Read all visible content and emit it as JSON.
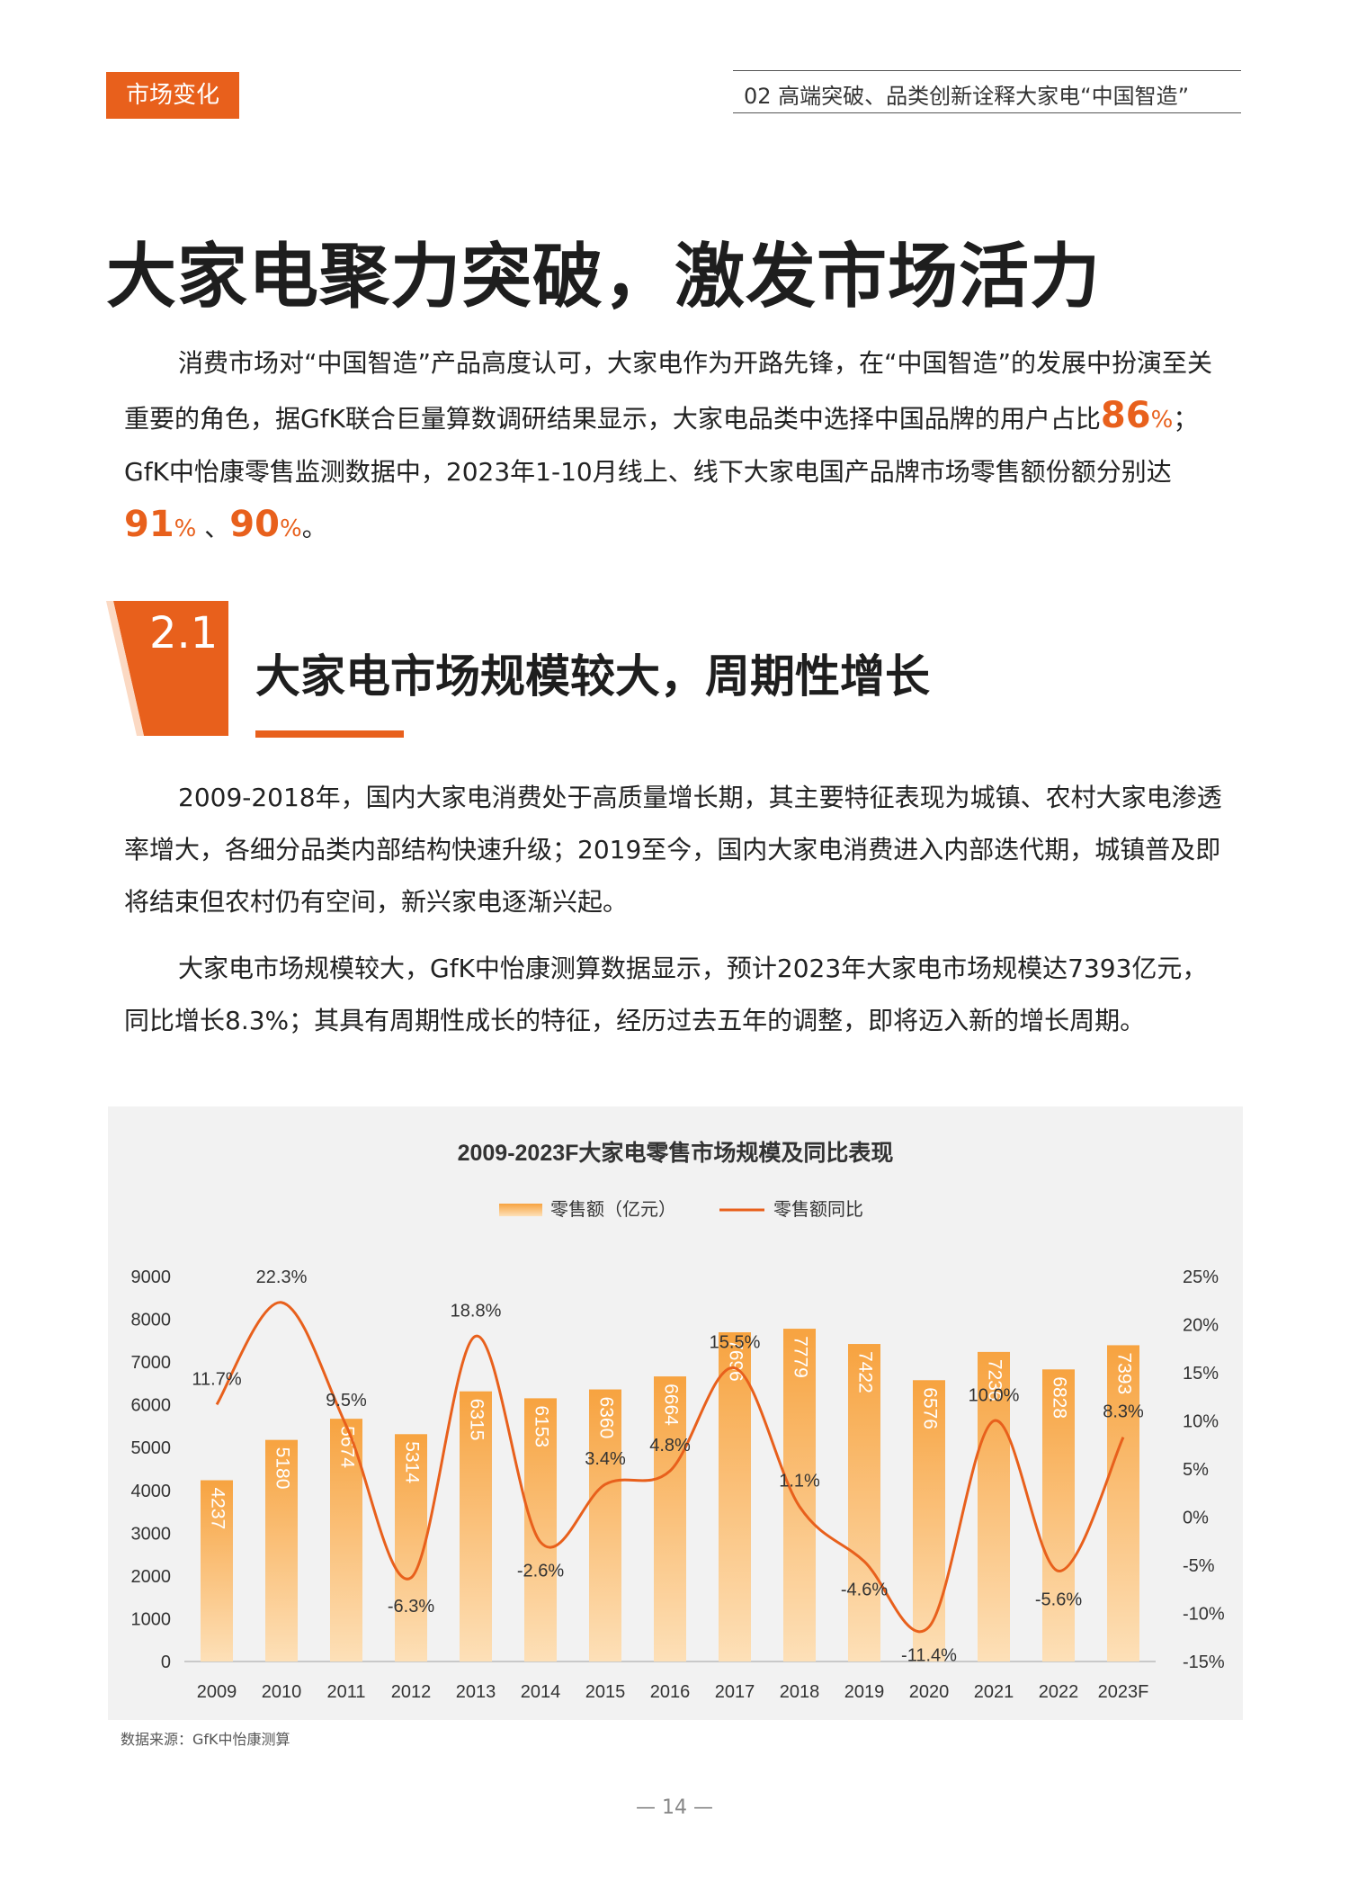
{
  "header": {
    "tag": "市场变化",
    "chapter": "02 高端突破、品类创新诠释大家电“中国智造”"
  },
  "title": "大家电聚力突破，激发市场活力",
  "intro": {
    "before1": "消费市场对“中国智造”产品高度认可，大家电作为开路先锋，在“中国智造”的发展中扮演至关重要的角色，据GfK联合巨量算数调研结果显示，大家电品类中选择中国品牌的用户占比",
    "v1": "86",
    "pct": "%",
    "between1": "；GfK中怡康零售监测数据中，2023年1-10月线上、线下大家电国产品牌市场零售额份额分别达",
    "v2": "91",
    "between2": " 、",
    "v3": "90",
    "end": "。"
  },
  "section": {
    "number": "2.1",
    "title": "大家电市场规模较大，周期性增长"
  },
  "para2": "2009-2018年，国内大家电消费处于高质量增长期，其主要特征表现为城镇、农村大家电渗透率增大，各细分品类内部结构快速升级；2019至今，国内大家电消费进入内部迭代期，城镇普及即将结束但农村仍有空间，新兴家电逐渐兴起。",
  "para3": "大家电市场规模较大，GfK中怡康测算数据显示，预计2023年大家电市场规模达7393亿元，同比增长8.3%；其具有周期性成长的特征，经历过去五年的调整，即将迈入新的增长周期。",
  "chart_data": {
    "type": "bar",
    "title": "2009-2023F大家电零售市场规模及同比表现",
    "categories": [
      "2009",
      "2010",
      "2011",
      "2012",
      "2013",
      "2014",
      "2015",
      "2016",
      "2017",
      "2018",
      "2019",
      "2020",
      "2021",
      "2022",
      "2023F"
    ],
    "series": [
      {
        "name": "零售额（亿元）",
        "type": "bar",
        "axis": "left",
        "values": [
          4237,
          5180,
          5674,
          5314,
          6315,
          6153,
          6360,
          6664,
          7696,
          7779,
          7422,
          6576,
          7236,
          6828,
          7393
        ]
      },
      {
        "name": "零售额同比",
        "type": "line",
        "axis": "right",
        "values": [
          11.7,
          22.3,
          9.5,
          -6.3,
          18.8,
          -2.6,
          3.4,
          4.8,
          15.5,
          1.1,
          -4.6,
          -11.4,
          10.0,
          -5.6,
          8.3
        ],
        "labels": [
          "11.7%",
          "22.3%",
          "9.5%",
          "-6.3%",
          "18.8%",
          "-2.6%",
          "3.4%",
          "4.8%",
          "15.5%",
          "1.1%",
          "-4.6%",
          "-11.4%",
          "10.0%",
          "-5.6%",
          "8.3%"
        ]
      }
    ],
    "left_axis": {
      "ticks": [
        "0",
        "1000",
        "2000",
        "3000",
        "4000",
        "5000",
        "6000",
        "7000",
        "8000",
        "9000"
      ],
      "ylim": [
        0,
        9000
      ]
    },
    "right_axis": {
      "ticks": [
        "-15%",
        "-10%",
        "-5%",
        "0%",
        "5%",
        "10%",
        "15%",
        "20%",
        "25%"
      ],
      "ylim": [
        -15,
        25
      ]
    },
    "legend": "top-center",
    "colors": {
      "bar": "#f7a340",
      "line": "#e8601c"
    }
  },
  "source": "数据来源：GfK中怡康测算",
  "page_number": "— 14 —"
}
